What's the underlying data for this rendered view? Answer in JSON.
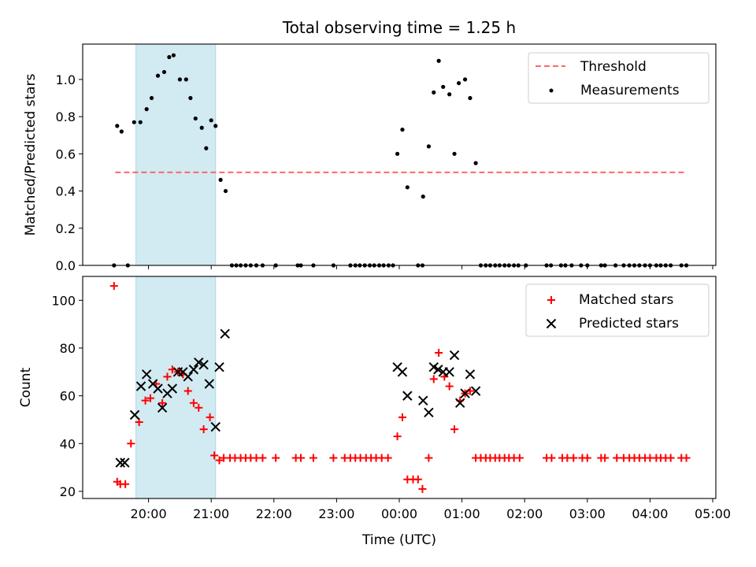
{
  "title": "Total observing time = 1.25 h",
  "xlabel": "Time (UTC)",
  "x_tick_labels": [
    "20:00",
    "21:00",
    "22:00",
    "23:00",
    "00:00",
    "01:00",
    "02:00",
    "03:00",
    "04:00",
    "05:00"
  ],
  "x_range_hours": [
    18.95,
    29.05
  ],
  "shaded_interval_hours": [
    19.8,
    21.07
  ],
  "shade_color": "#add8e6",
  "chart_data": [
    {
      "type": "scatter",
      "ylabel": "Matched/Predicted stars",
      "ylim": [
        0,
        1.19
      ],
      "y_ticks": [
        "0.0",
        "0.2",
        "0.4",
        "0.6",
        "0.8",
        "1.0"
      ],
      "legend_position": "top-right",
      "threshold": {
        "name": "Threshold",
        "y": 0.5,
        "x_start": 19.47,
        "x_end": 28.58,
        "color": "#ff6666",
        "style": "dashed"
      },
      "series": [
        {
          "name": "Measurements",
          "color": "#000000",
          "marker": "dot",
          "points": [
            [
              19.45,
              0
            ],
            [
              19.5,
              0.75
            ],
            [
              19.57,
              0.72
            ],
            [
              19.67,
              0
            ],
            [
              19.77,
              0.77
            ],
            [
              19.87,
              0.77
            ],
            [
              19.97,
              0.84
            ],
            [
              20.05,
              0.9
            ],
            [
              20.15,
              1.02
            ],
            [
              20.25,
              1.04
            ],
            [
              20.33,
              1.12
            ],
            [
              20.4,
              1.13
            ],
            [
              20.5,
              1.0
            ],
            [
              20.6,
              1.0
            ],
            [
              20.67,
              0.9
            ],
            [
              20.75,
              0.79
            ],
            [
              20.85,
              0.74
            ],
            [
              20.92,
              0.63
            ],
            [
              21.0,
              0.78
            ],
            [
              21.07,
              0.75
            ],
            [
              21.15,
              0.46
            ],
            [
              21.23,
              0.4
            ],
            [
              21.33,
              0
            ],
            [
              21.4,
              0
            ],
            [
              21.47,
              0
            ],
            [
              21.55,
              0
            ],
            [
              21.63,
              0
            ],
            [
              21.72,
              0
            ],
            [
              21.82,
              0
            ],
            [
              22.03,
              0
            ],
            [
              22.38,
              0
            ],
            [
              22.43,
              0
            ],
            [
              22.63,
              0
            ],
            [
              22.95,
              0
            ],
            [
              23.22,
              0
            ],
            [
              23.3,
              0
            ],
            [
              23.37,
              0
            ],
            [
              23.45,
              0
            ],
            [
              23.53,
              0
            ],
            [
              23.6,
              0
            ],
            [
              23.68,
              0
            ],
            [
              23.75,
              0
            ],
            [
              23.83,
              0
            ],
            [
              23.9,
              0
            ],
            [
              23.97,
              0.6
            ],
            [
              24.05,
              0.73
            ],
            [
              24.13,
              0.42
            ],
            [
              24.3,
              0
            ],
            [
              24.37,
              0
            ],
            [
              24.38,
              0.37
            ],
            [
              24.47,
              0.64
            ],
            [
              24.55,
              0.93
            ],
            [
              24.63,
              1.1
            ],
            [
              24.7,
              0.96
            ],
            [
              24.8,
              0.92
            ],
            [
              24.88,
              0.6
            ],
            [
              24.95,
              0.98
            ],
            [
              25.05,
              1.0
            ],
            [
              25.13,
              0.9
            ],
            [
              25.22,
              0.55
            ],
            [
              25.3,
              0
            ],
            [
              25.38,
              0
            ],
            [
              25.45,
              0
            ],
            [
              25.53,
              0
            ],
            [
              25.6,
              0
            ],
            [
              25.68,
              0
            ],
            [
              25.75,
              0
            ],
            [
              25.83,
              0
            ],
            [
              25.9,
              0
            ],
            [
              26.02,
              0
            ],
            [
              26.35,
              0
            ],
            [
              26.42,
              0
            ],
            [
              26.58,
              0
            ],
            [
              26.65,
              0
            ],
            [
              26.75,
              0
            ],
            [
              26.9,
              0
            ],
            [
              27.0,
              0
            ],
            [
              27.22,
              0
            ],
            [
              27.28,
              0
            ],
            [
              27.45,
              0
            ],
            [
              27.58,
              0
            ],
            [
              27.67,
              0
            ],
            [
              27.75,
              0
            ],
            [
              27.83,
              0
            ],
            [
              27.92,
              0
            ],
            [
              28.0,
              0
            ],
            [
              28.1,
              0
            ],
            [
              28.17,
              0
            ],
            [
              28.25,
              0
            ],
            [
              28.33,
              0
            ],
            [
              28.5,
              0
            ],
            [
              28.58,
              0
            ]
          ]
        }
      ]
    },
    {
      "type": "scatter",
      "ylabel": "Count",
      "ylim": [
        17,
        110
      ],
      "y_ticks": [
        "20",
        "40",
        "60",
        "80",
        "100"
      ],
      "legend_position": "top-right",
      "series": [
        {
          "name": "Matched stars",
          "color": "#ff0000",
          "marker": "plus",
          "points": [
            [
              19.45,
              106
            ],
            [
              19.5,
              24
            ],
            [
              19.55,
              23
            ],
            [
              19.63,
              23
            ],
            [
              19.72,
              40
            ],
            [
              19.85,
              49
            ],
            [
              19.95,
              58
            ],
            [
              20.03,
              59
            ],
            [
              20.12,
              65
            ],
            [
              20.22,
              57
            ],
            [
              20.3,
              68
            ],
            [
              20.38,
              71
            ],
            [
              20.47,
              70
            ],
            [
              20.55,
              69
            ],
            [
              20.63,
              62
            ],
            [
              20.72,
              57
            ],
            [
              20.8,
              55
            ],
            [
              20.88,
              46
            ],
            [
              20.98,
              51
            ],
            [
              21.05,
              35
            ],
            [
              21.13,
              33
            ],
            [
              21.2,
              34
            ],
            [
              21.3,
              34
            ],
            [
              21.38,
              34
            ],
            [
              21.47,
              34
            ],
            [
              21.55,
              34
            ],
            [
              21.63,
              34
            ],
            [
              21.72,
              34
            ],
            [
              21.82,
              34
            ],
            [
              22.03,
              34
            ],
            [
              22.35,
              34
            ],
            [
              22.43,
              34
            ],
            [
              22.63,
              34
            ],
            [
              22.95,
              34
            ],
            [
              23.13,
              34
            ],
            [
              23.22,
              34
            ],
            [
              23.3,
              34
            ],
            [
              23.38,
              34
            ],
            [
              23.47,
              34
            ],
            [
              23.55,
              34
            ],
            [
              23.63,
              34
            ],
            [
              23.72,
              34
            ],
            [
              23.82,
              34
            ],
            [
              23.97,
              43
            ],
            [
              24.05,
              51
            ],
            [
              24.13,
              25
            ],
            [
              24.22,
              25
            ],
            [
              24.3,
              25
            ],
            [
              24.37,
              21
            ],
            [
              24.47,
              34
            ],
            [
              24.55,
              67
            ],
            [
              24.63,
              78
            ],
            [
              24.72,
              68
            ],
            [
              24.8,
              64
            ],
            [
              24.88,
              46
            ],
            [
              24.97,
              58
            ],
            [
              25.05,
              61
            ],
            [
              25.13,
              62
            ],
            [
              25.22,
              34
            ],
            [
              25.3,
              34
            ],
            [
              25.38,
              34
            ],
            [
              25.45,
              34
            ],
            [
              25.53,
              34
            ],
            [
              25.6,
              34
            ],
            [
              25.68,
              34
            ],
            [
              25.75,
              34
            ],
            [
              25.83,
              34
            ],
            [
              25.92,
              34
            ],
            [
              26.35,
              34
            ],
            [
              26.43,
              34
            ],
            [
              26.6,
              34
            ],
            [
              26.68,
              34
            ],
            [
              26.78,
              34
            ],
            [
              26.92,
              34
            ],
            [
              27.0,
              34
            ],
            [
              27.22,
              34
            ],
            [
              27.28,
              34
            ],
            [
              27.47,
              34
            ],
            [
              27.58,
              34
            ],
            [
              27.67,
              34
            ],
            [
              27.75,
              34
            ],
            [
              27.83,
              34
            ],
            [
              27.92,
              34
            ],
            [
              28.0,
              34
            ],
            [
              28.1,
              34
            ],
            [
              28.17,
              34
            ],
            [
              28.25,
              34
            ],
            [
              28.33,
              34
            ],
            [
              28.5,
              34
            ],
            [
              28.58,
              34
            ]
          ]
        },
        {
          "name": "Predicted stars",
          "color": "#000000",
          "marker": "x",
          "points": [
            [
              19.55,
              32
            ],
            [
              19.62,
              32
            ],
            [
              19.78,
              52
            ],
            [
              19.88,
              64
            ],
            [
              19.97,
              69
            ],
            [
              20.07,
              65
            ],
            [
              20.15,
              63
            ],
            [
              20.22,
              55
            ],
            [
              20.3,
              61
            ],
            [
              20.38,
              63
            ],
            [
              20.47,
              70
            ],
            [
              20.55,
              70
            ],
            [
              20.63,
              68
            ],
            [
              20.72,
              71
            ],
            [
              20.8,
              74
            ],
            [
              20.88,
              73
            ],
            [
              20.97,
              65
            ],
            [
              21.07,
              47
            ],
            [
              21.13,
              72
            ],
            [
              21.22,
              86
            ],
            [
              23.97,
              72
            ],
            [
              24.05,
              70
            ],
            [
              24.13,
              60
            ],
            [
              24.38,
              58
            ],
            [
              24.47,
              53
            ],
            [
              24.55,
              72
            ],
            [
              24.62,
              71
            ],
            [
              24.7,
              70
            ],
            [
              24.8,
              70
            ],
            [
              24.88,
              77
            ],
            [
              24.97,
              57
            ],
            [
              25.05,
              61
            ],
            [
              25.13,
              69
            ],
            [
              25.22,
              62
            ]
          ]
        }
      ]
    }
  ]
}
